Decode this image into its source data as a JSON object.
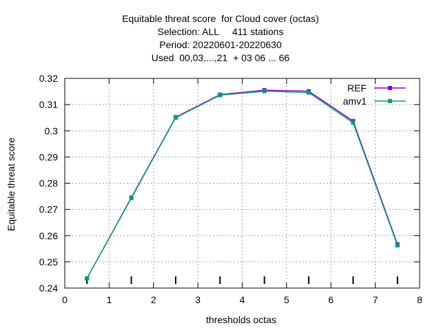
{
  "title_lines": [
    "Equitable threat score  for Cloud cover (octas)",
    "Selection: ALL     411 stations",
    "Period: 20220601-20220630",
    "Used  00,03,...,21  + 03 06 ... 66"
  ],
  "chart_data": {
    "type": "line",
    "xlabel": "thresholds octas",
    "ylabel": "Equitable threat score",
    "xlim": [
      0,
      8
    ],
    "ylim": [
      0.24,
      0.32
    ],
    "xticks": [
      0,
      1,
      2,
      3,
      4,
      5,
      6,
      7,
      8
    ],
    "yticks": [
      0.24,
      0.25,
      0.26,
      0.27,
      0.28,
      0.29,
      0.3,
      0.31,
      0.32
    ],
    "ytick_labels": [
      "0.24",
      "0.25",
      "0.26",
      "0.27",
      "0.28",
      "0.29",
      "0.3",
      "0.31",
      "0.32"
    ],
    "grid": true,
    "legend_position": "top-right",
    "x": [
      0.5,
      1.5,
      2.5,
      3.5,
      4.5,
      5.5,
      6.5,
      7.5
    ],
    "series": [
      {
        "name": "REF",
        "color": "#9400d3",
        "values": [
          0.2437,
          0.2745,
          0.3052,
          0.3138,
          0.3155,
          0.3151,
          0.3037,
          0.2567
        ]
      },
      {
        "name": "amv1",
        "color": "#009e73",
        "values": [
          0.2437,
          0.2743,
          0.305,
          0.3136,
          0.3151,
          0.3146,
          0.3031,
          0.2563
        ]
      }
    ]
  }
}
